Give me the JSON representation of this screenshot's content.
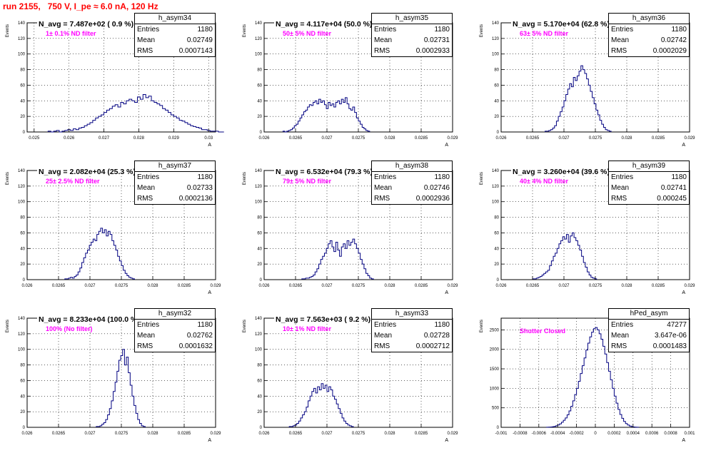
{
  "title": "run 2155,   750 V, I_pe ≈ 6.0 nA, 120 Hz",
  "stats_labels": {
    "entries": "Entries",
    "mean": "Mean",
    "rms": "RMS"
  },
  "chart_data": [
    {
      "type": "bar",
      "name": "h_asym34",
      "navg": "N_avg = 7.487e+02 ( 0.9 %)",
      "filter": "1± 0.1% ND filter",
      "stats": {
        "entries": "1180",
        "mean": "0.02749",
        "rms": "0.0007143"
      },
      "ylabel": "Events",
      "xlabel": "A",
      "xlim": [
        0.0248,
        0.0302
      ],
      "ylim": [
        0,
        140
      ],
      "yticks": [
        "0",
        "20",
        "40",
        "60",
        "80",
        "100",
        "120",
        "140"
      ],
      "xticks": [
        "0.025",
        "0.026",
        "0.027",
        "0.028",
        "0.029",
        "0.03"
      ],
      "bin_width": 8e-05,
      "bins_start": 0.0254,
      "values": [
        1,
        0,
        1,
        2,
        0,
        1,
        2,
        3,
        2,
        4,
        3,
        5,
        6,
        8,
        10,
        12,
        15,
        18,
        20,
        22,
        25,
        28,
        30,
        33,
        35,
        32,
        38,
        36,
        40,
        42,
        40,
        38,
        45,
        42,
        48,
        44,
        46,
        40,
        38,
        36,
        34,
        30,
        28,
        25,
        22,
        20,
        18,
        15,
        14,
        12,
        10,
        8,
        7,
        6,
        5,
        3,
        3,
        2,
        1,
        1,
        1,
        0,
        0
      ]
    },
    {
      "type": "bar",
      "name": "h_asym35",
      "navg": "N_avg = 4.117e+04 (50.0 %)",
      "filter": "50± 5% ND filter",
      "stats": {
        "entries": "1180",
        "mean": "0.02731",
        "rms": "0.0002933"
      },
      "ylabel": "Events",
      "xlabel": "A",
      "xlim": [
        0.026,
        0.029
      ],
      "ylim": [
        0,
        140
      ],
      "yticks": [
        "0",
        "20",
        "40",
        "60",
        "80",
        "100",
        "120",
        "140"
      ],
      "xticks": [
        "0.026",
        "0.0265",
        "0.027",
        "0.0275",
        "0.028",
        "0.0285",
        "0.029"
      ],
      "bin_width": 3e-05,
      "bins_start": 0.0263,
      "values": [
        1,
        0,
        1,
        2,
        3,
        5,
        8,
        10,
        14,
        18,
        22,
        26,
        28,
        32,
        35,
        34,
        38,
        40,
        36,
        42,
        38,
        40,
        35,
        30,
        38,
        34,
        36,
        32,
        38,
        40,
        36,
        42,
        38,
        44,
        36,
        30,
        28,
        32,
        25,
        18,
        14,
        10,
        6,
        4,
        2,
        1
      ]
    },
    {
      "type": "bar",
      "name": "h_asym36",
      "navg": "N_avg = 5.170e+04 (62.8 %)",
      "filter": "63± 5% ND filter",
      "stats": {
        "entries": "1180",
        "mean": "0.02742",
        "rms": "0.0002029"
      },
      "ylabel": "Events",
      "xlabel": "A",
      "xlim": [
        0.026,
        0.029
      ],
      "ylim": [
        0,
        140
      ],
      "yticks": [
        "0",
        "20",
        "40",
        "60",
        "80",
        "100",
        "120",
        "140"
      ],
      "xticks": [
        "0.026",
        "0.0265",
        "0.027",
        "0.0275",
        "0.028",
        "0.0285",
        "0.029"
      ],
      "bin_width": 3e-05,
      "bins_start": 0.0267,
      "values": [
        1,
        1,
        2,
        3,
        5,
        8,
        14,
        20,
        26,
        32,
        40,
        48,
        55,
        62,
        58,
        70,
        66,
        72,
        78,
        85,
        80,
        75,
        68,
        60,
        52,
        44,
        36,
        28,
        22,
        15,
        10,
        6,
        3,
        2,
        1
      ]
    },
    {
      "type": "bar",
      "name": "h_asym37",
      "navg": "N_avg = 2.082e+04 (25.3 %)",
      "filter": "25± 2.5% ND filter",
      "stats": {
        "entries": "1180",
        "mean": "0.02733",
        "rms": "0.0002136"
      },
      "ylabel": "Events",
      "xlabel": "A",
      "xlim": [
        0.026,
        0.029
      ],
      "ylim": [
        0,
        140
      ],
      "yticks": [
        "0",
        "20",
        "40",
        "60",
        "80",
        "100",
        "120",
        "140"
      ],
      "xticks": [
        "0.026",
        "0.0265",
        "0.027",
        "0.0275",
        "0.028",
        "0.0285",
        "0.029"
      ],
      "bin_width": 3e-05,
      "bins_start": 0.0266,
      "values": [
        1,
        1,
        2,
        3,
        2,
        4,
        6,
        10,
        15,
        22,
        28,
        34,
        38,
        44,
        48,
        52,
        50,
        58,
        62,
        66,
        60,
        64,
        56,
        62,
        58,
        50,
        44,
        38,
        30,
        24,
        18,
        12,
        8,
        5,
        3,
        2,
        1
      ]
    },
    {
      "type": "bar",
      "name": "h_asym38",
      "navg": "N_avg = 6.532e+04 (79.3 %)",
      "filter": "79± 5% ND filter",
      "stats": {
        "entries": "1180",
        "mean": "0.02746",
        "rms": "0.0002936"
      },
      "ylabel": "Events",
      "xlabel": "A",
      "xlim": [
        0.026,
        0.029
      ],
      "ylim": [
        0,
        140
      ],
      "yticks": [
        "0",
        "20",
        "40",
        "60",
        "80",
        "100",
        "120",
        "140"
      ],
      "xticks": [
        "0.026",
        "0.0265",
        "0.027",
        "0.0275",
        "0.028",
        "0.0285",
        "0.029"
      ],
      "bin_width": 3e-05,
      "bins_start": 0.0266,
      "values": [
        1,
        1,
        2,
        2,
        3,
        4,
        6,
        10,
        14,
        20,
        26,
        30,
        34,
        40,
        46,
        50,
        42,
        36,
        48,
        38,
        30,
        42,
        46,
        40,
        50,
        44,
        48,
        52,
        46,
        40,
        34,
        26,
        20,
        14,
        8,
        5,
        2,
        1
      ]
    },
    {
      "type": "bar",
      "name": "h_asym39",
      "navg": "N_avg = 3.260e+04 (39.6 %)",
      "filter": "40± 4% ND filter",
      "stats": {
        "entries": "1180",
        "mean": "0.02741",
        "rms": "0.000245"
      },
      "ylabel": "Events",
      "xlabel": "A",
      "xlim": [
        0.026,
        0.029
      ],
      "ylim": [
        0,
        140
      ],
      "yticks": [
        "0",
        "20",
        "40",
        "60",
        "80",
        "100",
        "120",
        "140"
      ],
      "xticks": [
        "0.026",
        "0.0265",
        "0.027",
        "0.0275",
        "0.028",
        "0.0285",
        "0.029"
      ],
      "bin_width": 3e-05,
      "bins_start": 0.0265,
      "values": [
        1,
        1,
        2,
        3,
        4,
        6,
        8,
        10,
        12,
        18,
        24,
        30,
        34,
        40,
        46,
        50,
        55,
        52,
        58,
        48,
        56,
        60,
        54,
        50,
        44,
        38,
        30,
        22,
        16,
        10,
        6,
        3,
        2,
        1
      ]
    },
    {
      "type": "bar",
      "name": "h_asym32",
      "navg": "N_avg = 8.233e+04 (100.0 %)",
      "filter": "100% (No filter)",
      "stats": {
        "entries": "1180",
        "mean": "0.02762",
        "rms": "0.0001632"
      },
      "ylabel": "Events",
      "xlabel": "A",
      "xlim": [
        0.026,
        0.029
      ],
      "ylim": [
        0,
        140
      ],
      "yticks": [
        "0",
        "20",
        "40",
        "60",
        "80",
        "100",
        "120",
        "140"
      ],
      "xticks": [
        "0.026",
        "0.0265",
        "0.027",
        "0.0275",
        "0.028",
        "0.0285",
        "0.029"
      ],
      "bin_width": 3e-05,
      "bins_start": 0.0271,
      "values": [
        1,
        1,
        2,
        4,
        6,
        10,
        16,
        24,
        34,
        46,
        58,
        72,
        86,
        92,
        100,
        80,
        90,
        70,
        54,
        40,
        28,
        18,
        10,
        5,
        2,
        1
      ]
    },
    {
      "type": "bar",
      "name": "h_asym33",
      "navg": "N_avg = 7.563e+03 ( 9.2 %)",
      "filter": "10± 1% ND filter",
      "stats": {
        "entries": "1180",
        "mean": "0.02728",
        "rms": "0.0002712"
      },
      "ylabel": "Events",
      "xlabel": "A",
      "xlim": [
        0.026,
        0.029
      ],
      "ylim": [
        0,
        140
      ],
      "yticks": [
        "0",
        "20",
        "40",
        "60",
        "80",
        "100",
        "120",
        "140"
      ],
      "xticks": [
        "0.026",
        "0.0265",
        "0.027",
        "0.0275",
        "0.028",
        "0.0285",
        "0.029"
      ],
      "bin_width": 3e-05,
      "bins_start": 0.0264,
      "values": [
        1,
        1,
        2,
        3,
        5,
        8,
        12,
        16,
        20,
        26,
        34,
        40,
        46,
        50,
        44,
        52,
        48,
        56,
        50,
        54,
        46,
        52,
        48,
        40,
        36,
        30,
        24,
        18,
        12,
        8,
        5,
        3,
        2,
        1
      ]
    },
    {
      "type": "bar",
      "name": "hPed_asym",
      "navg": "",
      "filter": "Shutter Closed",
      "stats": {
        "entries": "47277",
        "mean": "3.647e-06",
        "rms": "0.0001483"
      },
      "ylabel": "Events",
      "xlabel": "A",
      "xlim": [
        -0.001,
        0.001
      ],
      "ylim": [
        0,
        2800
      ],
      "yticks": [
        "0",
        "500",
        "1000",
        "1500",
        "2000",
        "2500"
      ],
      "xticks": [
        "-0.001",
        "-0.0008",
        "-0.0006",
        "-0.0004",
        "-0.0002",
        "0",
        "0.0002",
        "0.0004",
        "0.0006",
        "0.0008",
        "0.001"
      ],
      "bin_width": 2e-05,
      "bins_start": -0.00052,
      "values": [
        2,
        4,
        8,
        14,
        24,
        40,
        60,
        90,
        130,
        180,
        240,
        320,
        420,
        540,
        680,
        840,
        1000,
        1180,
        1380,
        1580,
        1780,
        1980,
        2160,
        2320,
        2440,
        2530,
        2560,
        2500,
        2400,
        2260,
        2080,
        1880,
        1660,
        1440,
        1220,
        1000,
        800,
        620,
        460,
        330,
        230,
        150,
        95,
        60,
        35,
        20,
        10,
        5,
        2
      ]
    }
  ]
}
